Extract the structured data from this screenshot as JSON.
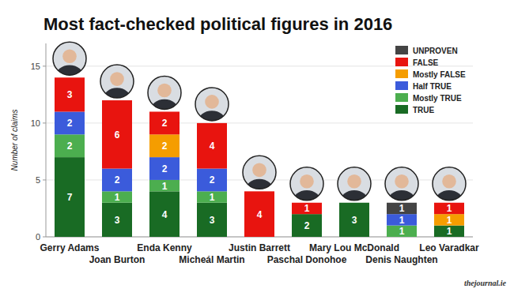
{
  "chart_data": {
    "type": "bar",
    "title": "Most fact-checked political figures in 2016",
    "y_label": "Number of claims",
    "source": "thejournal.ie",
    "categories": [
      "Gerry Adams",
      "Joan Burton",
      "Enda Kenny",
      "Micheál Martin",
      "Justin Barrett",
      "Paschal Donohoe",
      "Mary Lou McDonald",
      "Denis Naughten",
      "Leo Varadkar"
    ],
    "series": [
      {
        "name": "TRUE",
        "color": "#196b24",
        "values": [
          7,
          3,
          4,
          3,
          0,
          2,
          3,
          0,
          1
        ]
      },
      {
        "name": "Mostly TRUE",
        "color": "#4cae4f",
        "values": [
          2,
          1,
          1,
          1,
          0,
          0,
          0,
          1,
          0
        ]
      },
      {
        "name": "Half TRUE",
        "color": "#3b5bdb",
        "values": [
          2,
          2,
          2,
          2,
          0,
          0,
          0,
          1,
          0
        ]
      },
      {
        "name": "Mostly FALSE",
        "color": "#f59d00",
        "values": [
          0,
          0,
          2,
          0,
          0,
          0,
          0,
          0,
          1
        ]
      },
      {
        "name": "FALSE",
        "color": "#e8140f",
        "values": [
          3,
          6,
          2,
          4,
          4,
          1,
          0,
          0,
          1
        ]
      },
      {
        "name": "UNPROVEN",
        "color": "#444444",
        "values": [
          0,
          0,
          0,
          0,
          0,
          0,
          0,
          1,
          0
        ]
      }
    ],
    "stacked": true,
    "data_labels": true,
    "legend": "top-right",
    "grid": true,
    "ylim": [
      0,
      17
    ],
    "yticks": [
      0,
      5,
      10,
      15
    ]
  }
}
